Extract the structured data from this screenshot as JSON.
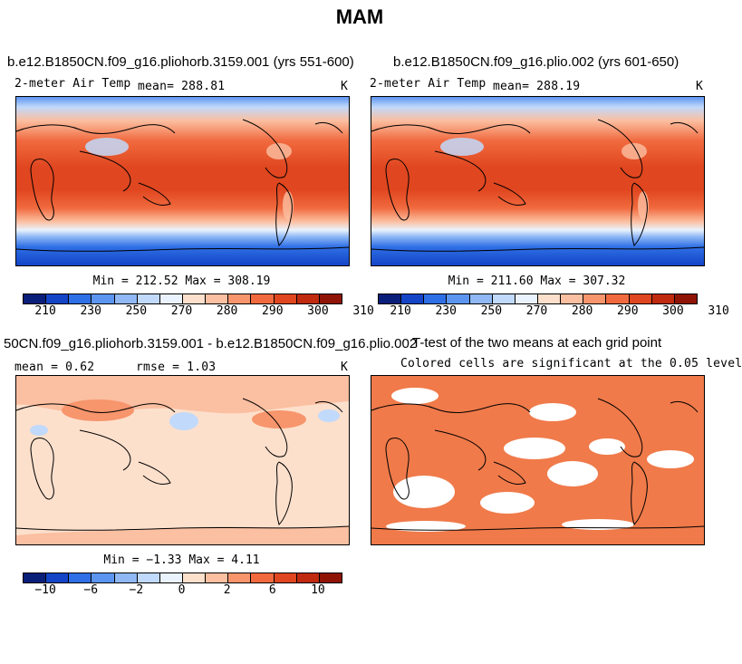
{
  "title": "MAM",
  "chart_data": [
    {
      "type": "heatmap",
      "title": "b.e12.B1850CN.f09_g16.pliohorb.3159.001 (yrs 551-600)",
      "variable": "2-meter Air Temp",
      "mean_label": "mean= 288.81",
      "units": "K",
      "minmax_label": "Min = 212.52 Max = 308.19",
      "min": 212.52,
      "max": 308.19,
      "mean": 288.81,
      "colorbar_ticks": [
        "210",
        "230",
        "250",
        "270",
        "280",
        "290",
        "300",
        "310"
      ],
      "colorbar_colors": [
        "#0a1f7a",
        "#1445c7",
        "#2f6fe6",
        "#5c95f0",
        "#8fb8f5",
        "#c1d9fb",
        "#eaf2fd",
        "#fde0cc",
        "#fbbfa1",
        "#f7956c",
        "#f16a3f",
        "#e0461f",
        "#c02a0f",
        "#8f1405"
      ]
    },
    {
      "type": "heatmap",
      "title": "b.e12.B1850CN.f09_g16.plio.002 (yrs 601-650)",
      "variable": "2-meter Air Temp",
      "mean_label": "mean= 288.19",
      "units": "K",
      "minmax_label": "Min = 211.60 Max = 307.32",
      "min": 211.6,
      "max": 307.32,
      "mean": 288.19,
      "colorbar_ticks": [
        "210",
        "230",
        "250",
        "270",
        "280",
        "290",
        "300",
        "310"
      ],
      "colorbar_colors": [
        "#0a1f7a",
        "#1445c7",
        "#2f6fe6",
        "#5c95f0",
        "#8fb8f5",
        "#c1d9fb",
        "#eaf2fd",
        "#fde0cc",
        "#fbbfa1",
        "#f7956c",
        "#f16a3f",
        "#e0461f",
        "#c02a0f",
        "#8f1405"
      ]
    },
    {
      "type": "heatmap",
      "title": "50CN.f09_g16.pliohorb.3159.001 - b.e12.B1850CN.f09_g16.plio.002",
      "mean_label": "mean =    0.62",
      "rmse_label": "rmse =    1.03",
      "units": "K",
      "minmax_label": "Min =  −1.33 Max =    4.11",
      "min": -1.33,
      "max": 4.11,
      "mean": 0.62,
      "rmse": 1.03,
      "colorbar_ticks": [
        "−10",
        "−6",
        "−2",
        "0",
        "2",
        "6",
        "10"
      ],
      "colorbar_colors": [
        "#0a1f7a",
        "#1445c7",
        "#2f6fe6",
        "#5c95f0",
        "#8fb8f5",
        "#c1d9fb",
        "#eaf2fd",
        "#fde0cc",
        "#fbbfa1",
        "#f7956c",
        "#f16a3f",
        "#e0461f",
        "#c02a0f",
        "#8f1405"
      ]
    },
    {
      "type": "heatmap",
      "title": "T-test of the two means at each grid point",
      "subtitle": "Colored cells are significant at the 0.05 level",
      "significant_color": "#f07a4a",
      "significance_level": 0.05
    }
  ]
}
